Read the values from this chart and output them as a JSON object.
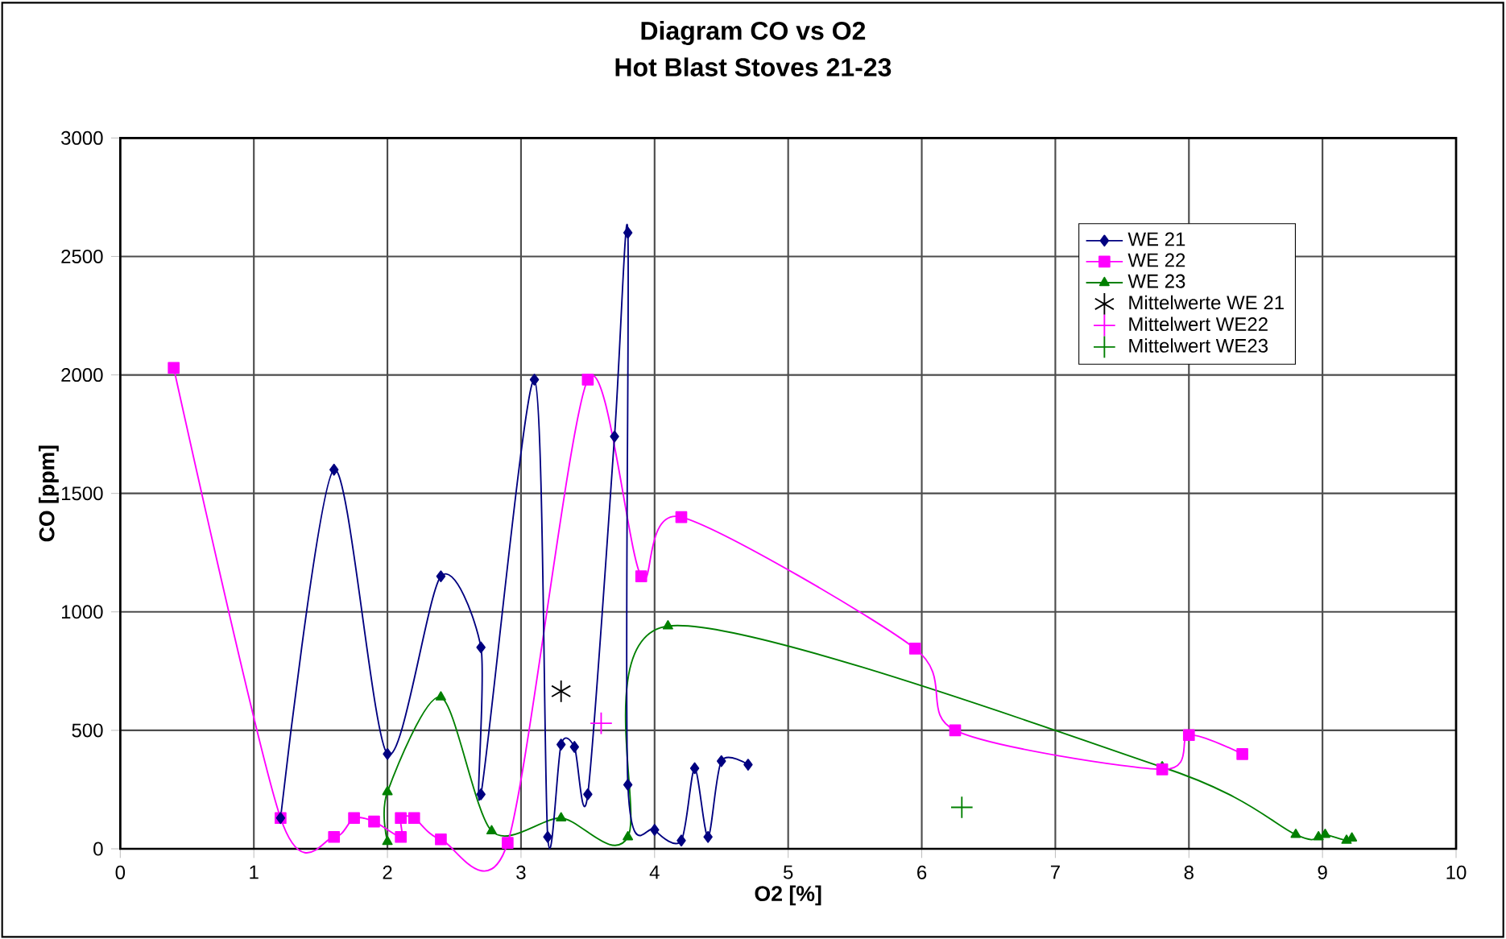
{
  "chart_data": {
    "type": "line",
    "title": "Diagram CO vs O2",
    "subtitle": "Hot Blast Stoves 21-23",
    "xlabel": "O2 [%]",
    "ylabel": "CO [ppm]",
    "xlim": [
      0,
      10
    ],
    "ylim": [
      0,
      3000
    ],
    "xticks": [
      0,
      1,
      2,
      3,
      4,
      5,
      6,
      7,
      8,
      9,
      10
    ],
    "yticks": [
      0,
      500,
      1000,
      1500,
      2000,
      2500,
      3000
    ],
    "grid": true,
    "legend": "top right",
    "series": [
      {
        "name": "WE 21",
        "color": "#000080",
        "marker": "diamond",
        "x": [
          1.2,
          1.6,
          2.0,
          2.4,
          2.7,
          2.7,
          3.1,
          3.2,
          3.3,
          3.4,
          3.5,
          3.7,
          3.8,
          3.8,
          4.0,
          4.2,
          4.3,
          4.4,
          4.5,
          4.7
        ],
        "values": [
          130,
          1600,
          400,
          1150,
          850,
          230,
          1980,
          50,
          440,
          430,
          230,
          1740,
          2600,
          270,
          80,
          35,
          340,
          50,
          370,
          355
        ]
      },
      {
        "name": "WE 22",
        "color": "#ff00ff",
        "marker": "square",
        "x": [
          0.4,
          1.2,
          1.6,
          1.75,
          1.9,
          2.1,
          2.1,
          2.2,
          2.4,
          2.9,
          3.5,
          3.9,
          4.2,
          5.95,
          6.25,
          7.8,
          8.0,
          8.4
        ],
        "values": [
          2030,
          130,
          50,
          130,
          115,
          50,
          130,
          130,
          40,
          25,
          1980,
          1150,
          1400,
          845,
          500,
          335,
          480,
          400
        ]
      },
      {
        "name": "WE 23",
        "color": "#008000",
        "marker": "triangle",
        "x": [
          2.0,
          2.0,
          2.4,
          2.78,
          3.3,
          3.8,
          4.1,
          7.8,
          8.8,
          8.97,
          9.02,
          9.18,
          9.22
        ],
        "values": [
          30,
          240,
          640,
          75,
          130,
          50,
          940,
          345,
          60,
          50,
          60,
          35,
          45
        ]
      },
      {
        "name": "Mittelwerte WE 21",
        "type": "scatter",
        "color": "#000000",
        "x": [
          3.3
        ],
        "values": [
          665
        ]
      },
      {
        "name": "Mittelwert WE22",
        "type": "scatter",
        "color": "#ff00ff",
        "marker": "cross",
        "x": [
          3.6
        ],
        "values": [
          530
        ]
      },
      {
        "name": "Mittelwert WE23",
        "type": "scatter",
        "color": "#008000",
        "marker": "cross",
        "x": [
          6.3
        ],
        "values": [
          175
        ]
      }
    ]
  }
}
